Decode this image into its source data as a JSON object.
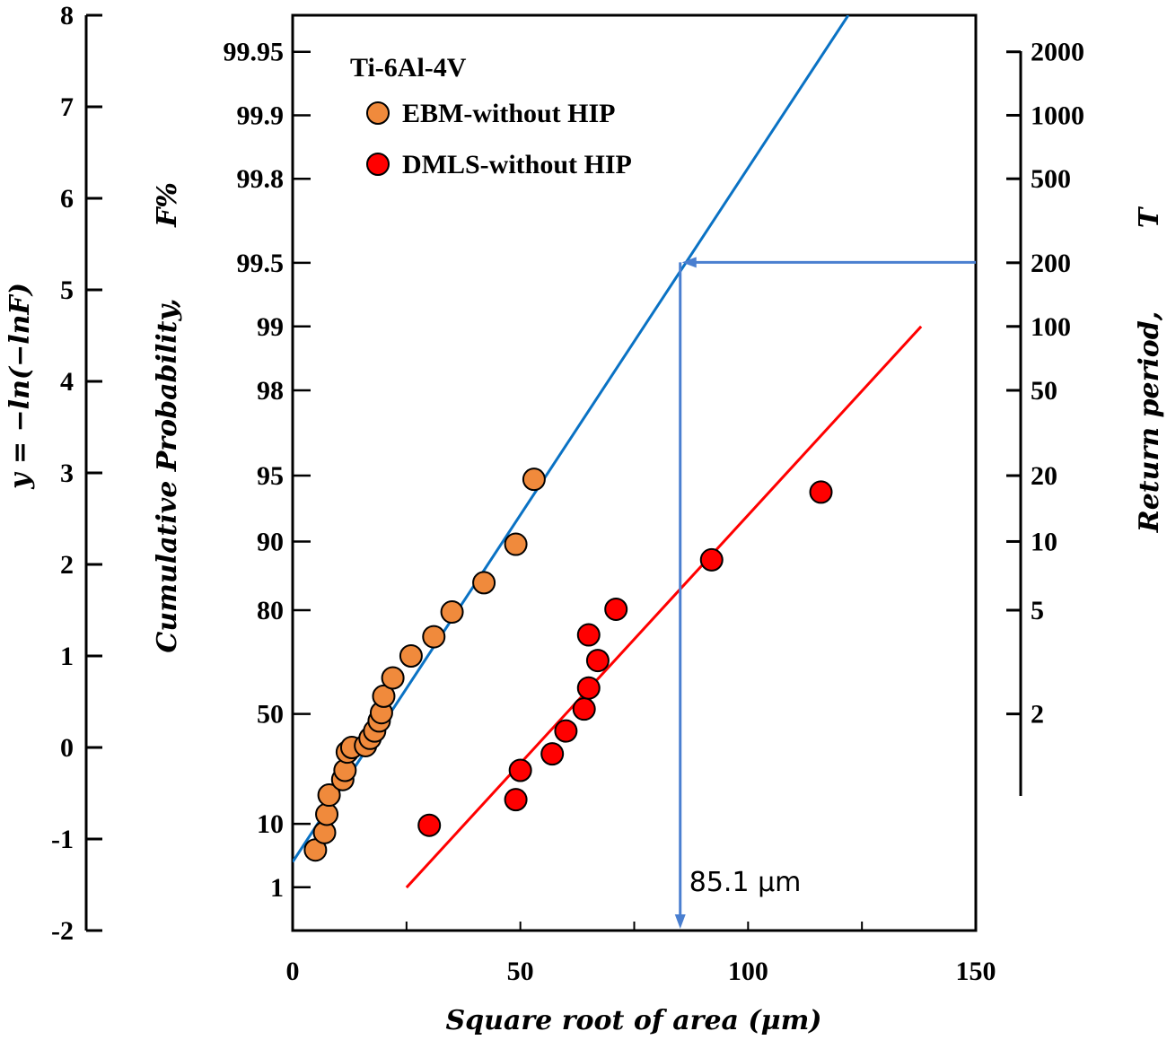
{
  "chart_data": {
    "type": "scatter",
    "title": "",
    "legend": {
      "title": "Ti-6Al-4V",
      "placement": "top-left"
    },
    "xlabel": "Square root of area (μm)",
    "xlim": [
      0,
      150
    ],
    "x_ticks": [
      0,
      50,
      100,
      150
    ],
    "left_axis": {
      "label": "y = −ln(−lnF)",
      "range": [
        -2,
        8
      ],
      "ticks": [
        -2,
        -1,
        0,
        1,
        2,
        3,
        4,
        5,
        6,
        7,
        8
      ]
    },
    "probability_axis": {
      "label": "Cumulative Probability,",
      "label_unit": "F%",
      "ticks": [
        1,
        10,
        50,
        80,
        90,
        95,
        98,
        99,
        99.5,
        99.8,
        99.9,
        99.95
      ]
    },
    "right_axis": {
      "label": "Return period,",
      "label_unit": "T",
      "ticks": [
        2,
        5,
        10,
        20,
        50,
        100,
        200,
        500,
        1000,
        2000
      ]
    },
    "series": [
      {
        "name": "EBM-without HIP",
        "color": "#f08a3c",
        "marker": "circle",
        "points": [
          [
            5,
            -1.12
          ],
          [
            7,
            -0.93
          ],
          [
            7.5,
            -0.73
          ],
          [
            8,
            -0.52
          ],
          [
            11,
            -0.35
          ],
          [
            11.5,
            -0.25
          ],
          [
            12,
            -0.05
          ],
          [
            13,
            0.0
          ],
          [
            16,
            0.02
          ],
          [
            17,
            0.1
          ],
          [
            18,
            0.18
          ],
          [
            19,
            0.29
          ],
          [
            19.5,
            0.38
          ],
          [
            20,
            0.56
          ],
          [
            22,
            0.76
          ],
          [
            26,
            1.0
          ],
          [
            31,
            1.21
          ],
          [
            35,
            1.48
          ],
          [
            42,
            1.8
          ],
          [
            49,
            2.22
          ],
          [
            53,
            2.93
          ]
        ]
      },
      {
        "name": "DMLS-without HIP",
        "color": "#ff0000",
        "marker": "circle",
        "points": [
          [
            30,
            -0.85
          ],
          [
            49,
            -0.57
          ],
          [
            50,
            -0.25
          ],
          [
            57,
            -0.07
          ],
          [
            60,
            0.18
          ],
          [
            64,
            0.42
          ],
          [
            65,
            0.65
          ],
          [
            67,
            0.95
          ],
          [
            65,
            1.23
          ],
          [
            71,
            1.51
          ],
          [
            92,
            2.05
          ],
          [
            116,
            2.79
          ]
        ]
      }
    ],
    "fit_lines": [
      {
        "series": "EBM-without HIP",
        "color": "#0a72c4",
        "x": [
          0,
          122
        ],
        "y": [
          -1.25,
          8.0
        ]
      },
      {
        "series": "DMLS-without HIP",
        "color": "#ff0000",
        "x": [
          25,
          138
        ],
        "y": [
          -1.53,
          4.6
        ]
      }
    ],
    "annotation": {
      "text": "85.1 μm",
      "x": 85.1,
      "y": 5.3,
      "color": "#4a7fd0"
    }
  }
}
